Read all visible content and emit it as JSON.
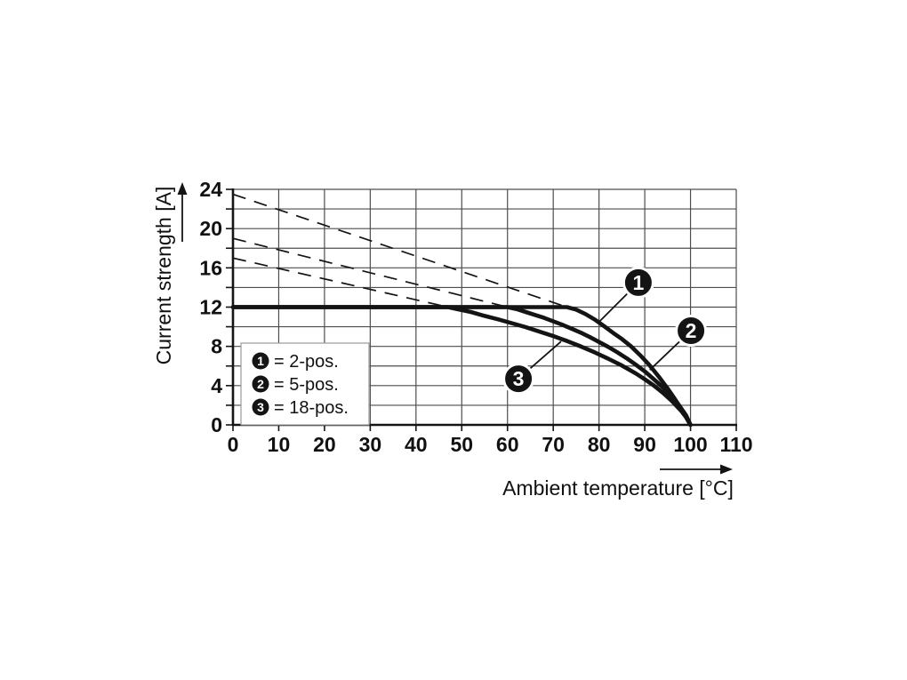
{
  "figure": {
    "background": "#ffffff",
    "line_color": "#141414",
    "grid_color": "#4d4d4d",
    "text_color": "#111111",
    "legend_border_color": "#9a9a9a",
    "callout_fill": "#141414",
    "callout_text_color": "#ffffff"
  },
  "chart_data": {
    "type": "line",
    "title": "",
    "xlabel": "Ambient temperature [°C]",
    "ylabel": "Current strength [A]",
    "xlim": [
      0,
      110
    ],
    "ylim": [
      0,
      24
    ],
    "xticks": [
      0,
      10,
      20,
      30,
      40,
      50,
      60,
      70,
      80,
      90,
      100,
      110
    ],
    "xtick_labels": [
      "0",
      "10",
      "20",
      "30",
      "40",
      "50",
      "60",
      "70",
      "80",
      "90",
      "100",
      "110"
    ],
    "ytick_labeled": [
      0,
      4,
      8,
      12,
      16,
      20,
      24
    ],
    "ytick_labels": [
      "0",
      "4",
      "8",
      "12",
      "16",
      "20",
      "24"
    ],
    "ygrid_step": 2,
    "xgrid_step": 10,
    "grid": true,
    "legend_position": "lower-left-inside",
    "current_limit": 12,
    "series": [
      {
        "id": "1",
        "name": "2-pos.",
        "style": "solid",
        "points": [
          [
            0,
            12
          ],
          [
            73,
            12
          ],
          [
            75,
            11.75
          ],
          [
            77,
            11.3
          ],
          [
            79,
            10.75
          ],
          [
            81,
            10.1
          ],
          [
            83,
            9.4
          ],
          [
            85,
            8.75
          ],
          [
            87,
            8.0
          ],
          [
            89,
            7.1
          ],
          [
            91,
            6.1
          ],
          [
            93,
            4.95
          ],
          [
            95,
            3.7
          ],
          [
            96.5,
            2.7
          ],
          [
            98,
            1.6
          ],
          [
            99,
            0.85
          ],
          [
            100,
            0
          ]
        ]
      },
      {
        "id": "2",
        "name": "5-pos.",
        "style": "solid",
        "points": [
          [
            0,
            12
          ],
          [
            60,
            12
          ],
          [
            62,
            11.8
          ],
          [
            64,
            11.5
          ],
          [
            66,
            11.2
          ],
          [
            68,
            10.9
          ],
          [
            70,
            10.55
          ],
          [
            72,
            10.2
          ],
          [
            74,
            9.8
          ],
          [
            76,
            9.4
          ],
          [
            78,
            8.95
          ],
          [
            80,
            8.45
          ],
          [
            82,
            7.95
          ],
          [
            84,
            7.4
          ],
          [
            86,
            6.8
          ],
          [
            88,
            6.15
          ],
          [
            90,
            5.45
          ],
          [
            92,
            4.65
          ],
          [
            94,
            3.8
          ],
          [
            96,
            2.85
          ],
          [
            97.5,
            2.0
          ],
          [
            99,
            1.0
          ],
          [
            100,
            0
          ]
        ]
      },
      {
        "id": "3",
        "name": "18-pos.",
        "style": "solid",
        "points": [
          [
            0,
            12
          ],
          [
            47,
            12
          ],
          [
            49,
            11.8
          ],
          [
            52,
            11.5
          ],
          [
            55,
            11.1
          ],
          [
            58,
            10.75
          ],
          [
            61,
            10.35
          ],
          [
            64,
            9.95
          ],
          [
            67,
            9.5
          ],
          [
            70,
            9.05
          ],
          [
            73,
            8.55
          ],
          [
            76,
            8.0
          ],
          [
            79,
            7.4
          ],
          [
            82,
            6.75
          ],
          [
            85,
            6.05
          ],
          [
            88,
            5.25
          ],
          [
            90,
            4.65
          ],
          [
            92,
            4.0
          ],
          [
            94,
            3.25
          ],
          [
            96,
            2.4
          ],
          [
            98,
            1.4
          ],
          [
            99,
            0.8
          ],
          [
            100,
            0
          ]
        ]
      }
    ],
    "dashed_extensions": [
      {
        "series": "1",
        "from": [
          0,
          23.5
        ],
        "to": [
          73,
          12
        ]
      },
      {
        "series": "2",
        "from": [
          0,
          19.0
        ],
        "to": [
          60,
          12
        ]
      },
      {
        "series": "3",
        "from": [
          0,
          17.0
        ],
        "to": [
          47,
          12
        ]
      }
    ],
    "callouts": [
      {
        "label": "1",
        "at": [
          88.6,
          14.5
        ],
        "pointer_to": [
          79.7,
          10.35
        ]
      },
      {
        "label": "2",
        "at": [
          100.1,
          9.6
        ],
        "pointer_to": [
          91.1,
          5.6
        ]
      },
      {
        "label": "3",
        "at": [
          62.4,
          4.7
        ],
        "pointer_to": [
          71.7,
          8.5
        ]
      }
    ],
    "legend": [
      {
        "symbol": "1",
        "label": "= 2-pos."
      },
      {
        "symbol": "2",
        "label": "= 5-pos."
      },
      {
        "symbol": "3",
        "label": "= 18-pos."
      }
    ]
  }
}
